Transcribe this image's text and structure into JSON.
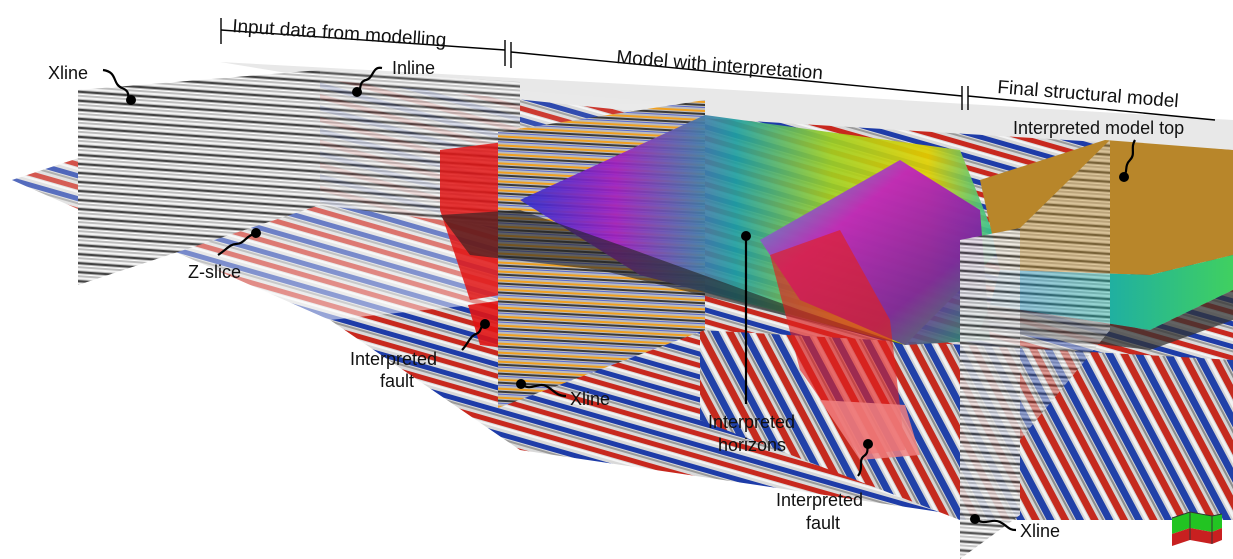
{
  "headers": {
    "input": "Input data from modelling",
    "model": "Model with interpretation",
    "final": "Final structural model"
  },
  "labels": {
    "xline_top_left": "Xline",
    "inline": "Inline",
    "zslice": "Z-slice",
    "fault_left_1": "Interpreted",
    "fault_left_2": "fault",
    "xline_mid": "Xline",
    "horizons_1": "Interpreted",
    "horizons_2": "horizons",
    "fault_right_1": "Interpreted",
    "fault_right_2": "fault",
    "model_top": "Interpreted model top",
    "xline_bottom_right": "Xline"
  },
  "icon": "orientation-cube-icon",
  "colors": {
    "seismic_red": "#c8281e",
    "seismic_blue": "#1e3ca8",
    "fault_red": "#e01414",
    "model_top": "#b8862a",
    "orientation_green": "#22c422"
  }
}
